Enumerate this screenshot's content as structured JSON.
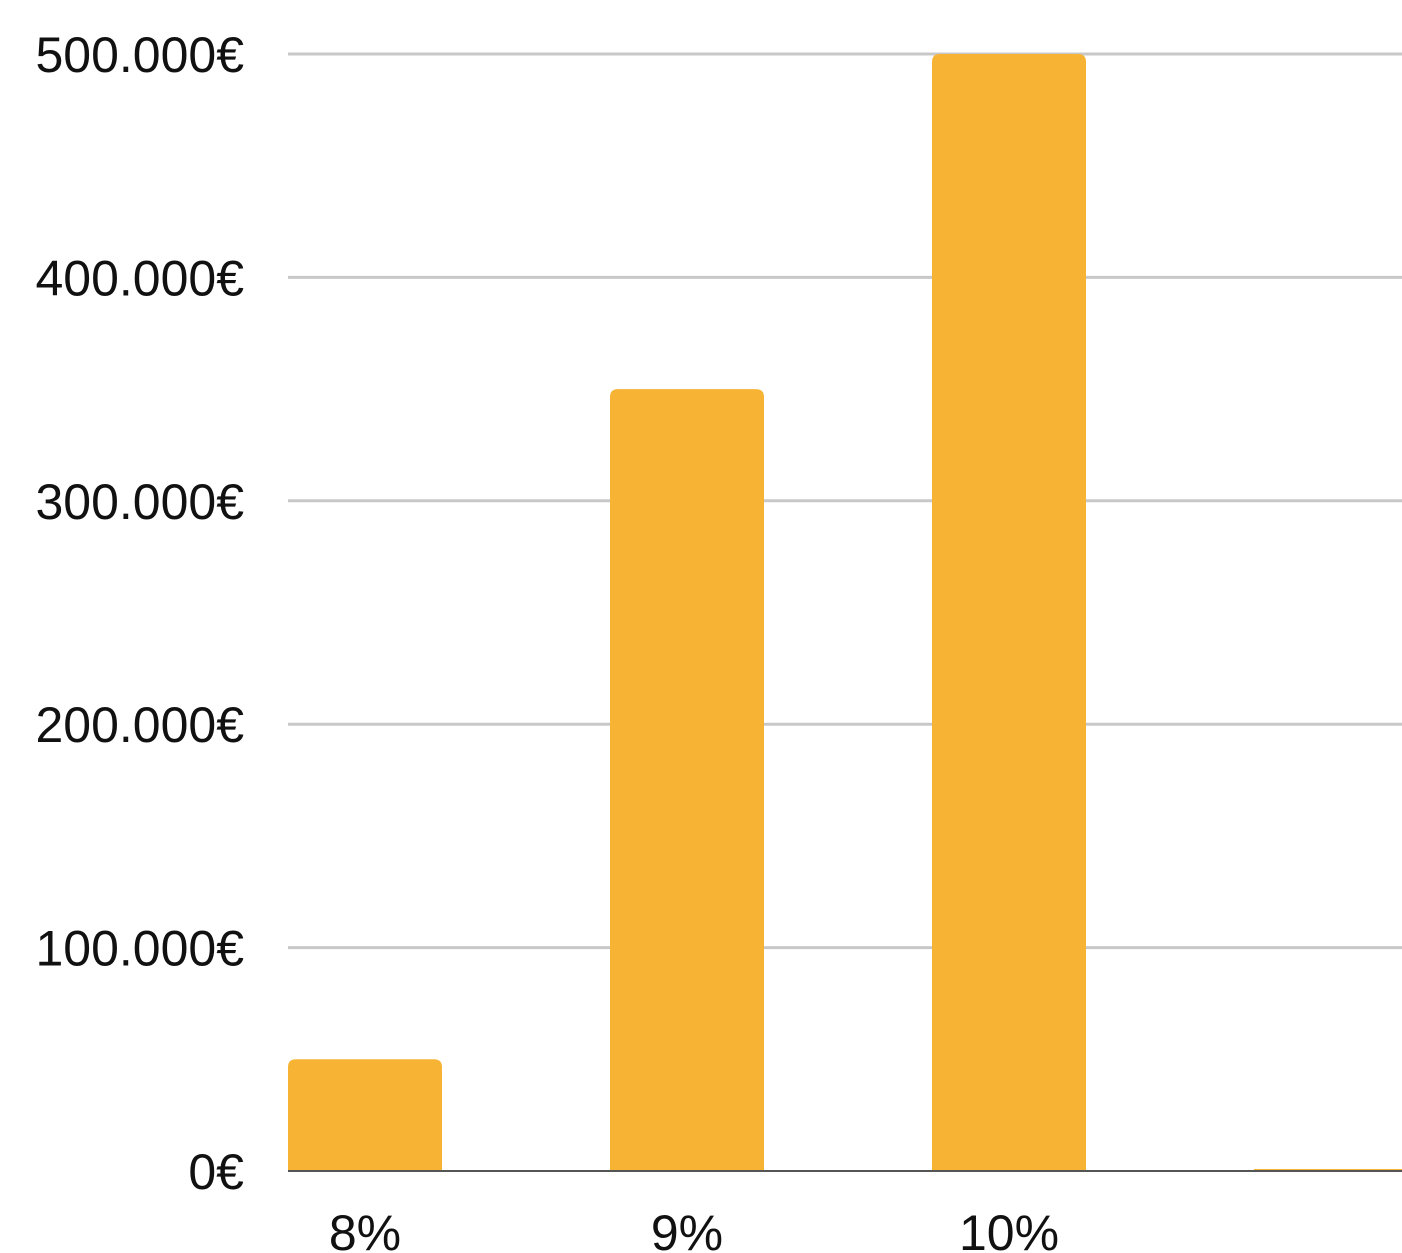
{
  "chart_data": {
    "type": "bar",
    "categories": [
      "8%",
      "9%",
      "10%",
      ""
    ],
    "values": [
      50000,
      350000,
      500000,
      0
    ],
    "ylim": [
      0,
      500000
    ],
    "yticks": [
      0,
      100000,
      200000,
      300000,
      400000,
      500000
    ],
    "ytick_labels": [
      "0€",
      "100.000€",
      "200.000€",
      "300.000€",
      "400.000€",
      "500.000€"
    ],
    "grid": true,
    "bar_color": "#F6B334",
    "grid_color": "#C8C8C8",
    "axis_color": "#555555"
  }
}
